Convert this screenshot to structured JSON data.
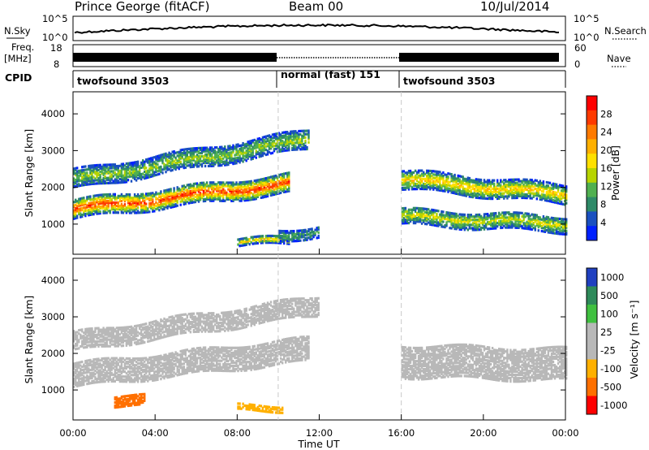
{
  "header": {
    "station": "Prince George (fitACF)",
    "beam": "Beam 00",
    "date": "10/Jul/2014"
  },
  "summary_panels": {
    "nsky": {
      "label": "N.Sky",
      "scale_top": "10^5",
      "scale_bottom": "10^0",
      "right_label": "N.Search",
      "right_top": "10^5",
      "right_bottom": "10^0"
    },
    "freq": {
      "label_top": "Freq.",
      "label_bottom": "[MHz]",
      "left_top": "18",
      "left_bottom": "8",
      "right_top": "60",
      "right_bottom": "0",
      "right_label": "Nave"
    },
    "cpid": {
      "label": "CPID",
      "segments": [
        {
          "text": "twofsound 3503",
          "start_h": 0,
          "end_h": 10
        },
        {
          "text": "normal (fast) 151",
          "start_h": 10,
          "end_h": 16
        },
        {
          "text": "twofsound 3503",
          "start_h": 16,
          "end_h": 24
        }
      ]
    }
  },
  "axes": {
    "ylabel": "Slant Range [km]",
    "yticks": [
      "4000",
      "3000",
      "2000",
      "1000"
    ],
    "xlabel": "Time UT",
    "xticks": [
      "00:00",
      "04:00",
      "08:00",
      "12:00",
      "16:00",
      "20:00",
      "00:00"
    ]
  },
  "colorbars": {
    "power": {
      "label": "Power [dB]",
      "ticks": [
        "28",
        "24",
        "20",
        "16",
        "12",
        "8",
        "4"
      ],
      "colors": [
        "#ff0000",
        "#ff3a00",
        "#ff7a00",
        "#ffb000",
        "#ffe000",
        "#b7d400",
        "#50b050",
        "#2e8a68",
        "#1a50c0",
        "#0020ff"
      ]
    },
    "velocity": {
      "label": "Velocity [m s⁻¹]",
      "ticks": [
        "1000",
        "500",
        "100",
        "25",
        "-25",
        "-100",
        "-500",
        "-1000"
      ],
      "colors": [
        "#2040c0",
        "#2e8a5a",
        "#40c040",
        "#b8b8b8",
        "#b8b8b8",
        "#ffb000",
        "#ff7000",
        "#ff0000"
      ]
    }
  },
  "chart_data": {
    "type": "heatmap",
    "x_range_hours": [
      0,
      24
    ],
    "y_range_km": [
      180,
      4600
    ],
    "mode_changes_hours": [
      10,
      16
    ],
    "power_panel": {
      "bands": [
        {
          "t0": 0,
          "t1": 10.5,
          "r0": 1400,
          "r1": 2100,
          "width": 520,
          "peak_db": 28
        },
        {
          "t0": 0,
          "t1": 11.5,
          "r0": 2200,
          "r1": 3300,
          "width": 500,
          "peak_db": 14
        },
        {
          "t0": 8,
          "t1": 10.5,
          "r0": 500,
          "r1": 550,
          "width": 200,
          "peak_db": 20
        },
        {
          "t0": 10,
          "t1": 12,
          "r0": 700,
          "r1": 800,
          "width": 300,
          "peak_db": 10
        },
        {
          "t0": 16,
          "t1": 24,
          "r0": 2200,
          "r1": 1800,
          "width": 500,
          "peak_db": 20
        },
        {
          "t0": 16,
          "t1": 24,
          "r0": 1200,
          "r1": 1000,
          "width": 450,
          "peak_db": 16
        }
      ]
    },
    "velocity_panel": {
      "bands": [
        {
          "t0": 0,
          "t1": 11.5,
          "r0": 1400,
          "r1": 2100,
          "width": 650,
          "velocity": 0
        },
        {
          "t0": 0,
          "t1": 12,
          "r0": 2300,
          "r1": 3300,
          "width": 500,
          "velocity": 0
        },
        {
          "t0": 16,
          "t1": 24,
          "r0": 1800,
          "r1": 1700,
          "width": 900,
          "velocity": 0
        },
        {
          "t0": 2,
          "t1": 3.5,
          "r0": 700,
          "r1": 700,
          "width": 300,
          "velocity": -400
        },
        {
          "t0": 8,
          "t1": 10.2,
          "r0": 500,
          "r1": 500,
          "width": 150,
          "velocity": -150
        }
      ]
    }
  }
}
